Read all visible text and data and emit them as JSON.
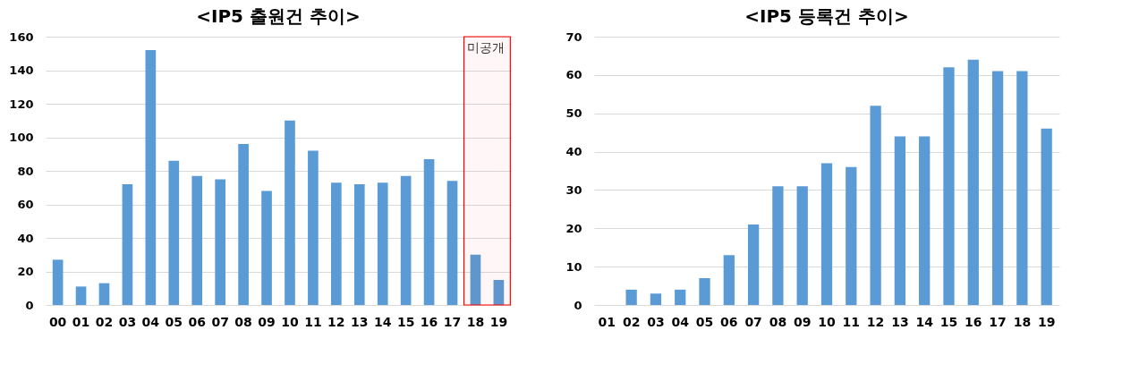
{
  "chart_data": [
    {
      "type": "bar",
      "title": "<IP5 출원건 추이>",
      "categories": [
        "00",
        "01",
        "02",
        "03",
        "04",
        "05",
        "06",
        "07",
        "08",
        "09",
        "10",
        "11",
        "12",
        "13",
        "14",
        "15",
        "16",
        "17",
        "18",
        "19"
      ],
      "values": [
        27,
        11,
        13,
        72,
        152,
        86,
        77,
        75,
        96,
        68,
        110,
        92,
        73,
        72,
        73,
        77,
        87,
        74,
        30,
        15
      ],
      "color": "#5b9bd5",
      "ylim": [
        0,
        160
      ],
      "yticks": [
        0,
        20,
        40,
        60,
        80,
        100,
        120,
        140,
        160
      ],
      "grid": "y",
      "bands": [
        {
          "axis": "x",
          "from": "18",
          "to": "19",
          "label": "미공개",
          "color": "#ff0000"
        }
      ]
    },
    {
      "type": "bar",
      "title": "<IP5 등록건 추이>",
      "categories": [
        "01",
        "02",
        "03",
        "04",
        "05",
        "06",
        "07",
        "08",
        "09",
        "10",
        "11",
        "12",
        "13",
        "14",
        "15",
        "16",
        "17",
        "18",
        "19"
      ],
      "values": [
        0,
        4,
        3,
        4,
        7,
        13,
        21,
        31,
        31,
        37,
        36,
        52,
        44,
        44,
        62,
        64,
        61,
        61,
        46
      ],
      "color": "#5b9bd5",
      "ylim": [
        0,
        70
      ],
      "yticks": [
        0,
        10,
        20,
        30,
        40,
        50,
        60,
        70
      ],
      "grid": "y"
    }
  ]
}
